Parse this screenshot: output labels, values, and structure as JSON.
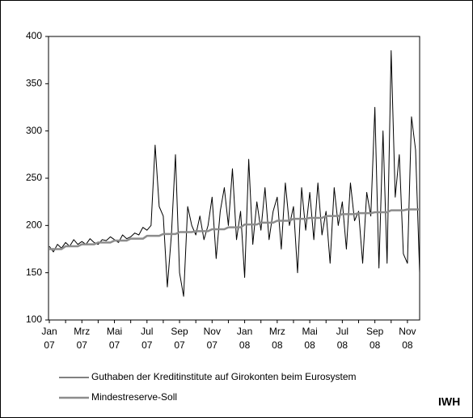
{
  "chart_data": {
    "type": "line",
    "categories": [
      [
        "Jan",
        "07"
      ],
      null,
      null,
      null,
      null,
      null,
      null,
      null,
      [
        "Mrz",
        "07"
      ],
      null,
      null,
      null,
      null,
      null,
      null,
      null,
      [
        "Mai",
        "07"
      ],
      null,
      null,
      null,
      null,
      null,
      null,
      null,
      [
        "Jul",
        "07"
      ],
      null,
      null,
      null,
      null,
      null,
      null,
      null,
      [
        "Sep",
        "07"
      ],
      null,
      null,
      null,
      null,
      null,
      null,
      null,
      [
        "Nov",
        "07"
      ],
      null,
      null,
      null,
      null,
      null,
      null,
      null,
      [
        "Jan",
        "08"
      ],
      null,
      null,
      null,
      null,
      null,
      null,
      null,
      [
        "Mrz",
        "08"
      ],
      null,
      null,
      null,
      null,
      null,
      null,
      null,
      [
        "Mai",
        "08"
      ],
      null,
      null,
      null,
      null,
      null,
      null,
      null,
      [
        "Jul",
        "08"
      ],
      null,
      null,
      null,
      null,
      null,
      null,
      null,
      [
        "Sep",
        "08"
      ],
      null,
      null,
      null,
      null,
      null,
      null,
      null,
      [
        "Nov",
        "08"
      ],
      null,
      null,
      null
    ],
    "series": [
      {
        "name": "Guthaben der Kreditinstitute auf Girokonten beim Eurosystem",
        "color": "#000000",
        "values": [
          178,
          172,
          180,
          176,
          182,
          178,
          185,
          180,
          183,
          180,
          186,
          182,
          180,
          185,
          184,
          188,
          185,
          182,
          190,
          186,
          188,
          192,
          190,
          198,
          195,
          200,
          285,
          220,
          210,
          135,
          190,
          275,
          150,
          125,
          220,
          200,
          190,
          210,
          185,
          200,
          230,
          165,
          215,
          240,
          200,
          260,
          185,
          215,
          145,
          270,
          180,
          225,
          195,
          240,
          185,
          215,
          230,
          175,
          245,
          200,
          220,
          150,
          240,
          195,
          235,
          185,
          245,
          190,
          215,
          160,
          240,
          200,
          225,
          175,
          245,
          205,
          215,
          160,
          235,
          210,
          325,
          155,
          300,
          160,
          385,
          230,
          275,
          170,
          160,
          315,
          280,
          150
        ]
      },
      {
        "name": "Mindestreserve-Soll",
        "color": "#8c8c8c",
        "values": [
          175,
          175,
          175,
          175,
          178,
          178,
          178,
          178,
          180,
          180,
          180,
          180,
          182,
          182,
          182,
          182,
          184,
          184,
          184,
          184,
          186,
          186,
          186,
          186,
          189,
          189,
          189,
          189,
          191,
          191,
          191,
          191,
          193,
          193,
          193,
          193,
          194,
          194,
          194,
          194,
          196,
          196,
          196,
          196,
          198,
          198,
          198,
          198,
          201,
          201,
          201,
          201,
          203,
          203,
          203,
          203,
          205,
          205,
          205,
          205,
          207,
          207,
          207,
          207,
          208,
          208,
          208,
          208,
          210,
          210,
          210,
          210,
          212,
          212,
          212,
          212,
          213,
          213,
          213,
          213,
          214,
          214,
          214,
          214,
          216,
          216,
          216,
          216,
          217,
          217,
          217,
          217
        ]
      }
    ],
    "ylim": [
      100,
      400
    ],
    "yticks": [
      100,
      150,
      200,
      250,
      300,
      350,
      400
    ],
    "grid": false,
    "source": "IWH"
  }
}
